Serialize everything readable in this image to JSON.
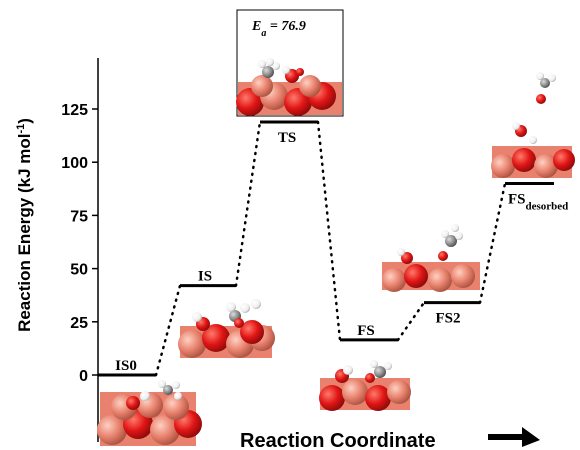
{
  "chart_data": {
    "type": "line",
    "xlabel": "Reaction Coordinate",
    "ylabel": "Reaction Energy (kJ mol",
    "ylabel_sup": "-1",
    "ylabel_close": ")",
    "ylim": [
      -30,
      140
    ],
    "yticks": [
      0,
      25,
      50,
      75,
      100,
      125
    ],
    "ytick_labels": [
      "0",
      "25",
      "50",
      "75",
      "100",
      "125"
    ],
    "states": [
      {
        "name": "IS0",
        "label": "IS0",
        "label_sub": "",
        "value": 0
      },
      {
        "name": "IS",
        "label": "IS",
        "label_sub": "",
        "value": 42
      },
      {
        "name": "TS",
        "label": "TS",
        "label_sub": "",
        "value": 118.9
      },
      {
        "name": "FS",
        "label": "FS",
        "label_sub": "",
        "value": 16.5
      },
      {
        "name": "FS2",
        "label": "FS2",
        "label_sub": "",
        "value": 34
      },
      {
        "name": "FS_desorbed",
        "label": "FS",
        "label_sub": "desorbed",
        "value": 90
      }
    ],
    "annotation": {
      "prefix": "E",
      "sub": "a",
      "text": " = 76.9"
    },
    "colors": {
      "line": "#000000",
      "oxygen": "#e01515",
      "surface": "#e8826e",
      "carbon": "#8a8a8a",
      "hydrogen": "#f2f2f2"
    }
  }
}
